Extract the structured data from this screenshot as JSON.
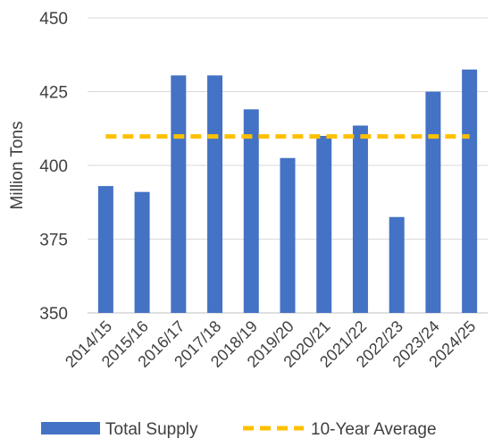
{
  "chart_data": {
    "type": "bar",
    "ylabel": "Million Tons",
    "xlabel": "",
    "ylim": [
      350,
      450
    ],
    "yticks": [
      350,
      375,
      400,
      425,
      450
    ],
    "grid": true,
    "legend_position": "bottom",
    "categories": [
      "2014/15",
      "2015/16",
      "2016/17",
      "2017/18",
      "2018/19",
      "2019/20",
      "2020/21",
      "2021/22",
      "2022/23",
      "2023/24",
      "2024/25"
    ],
    "series": [
      {
        "name": "Total Supply",
        "type": "bar",
        "color": "#4472C4",
        "values": [
          393,
          391,
          430.5,
          430.5,
          419,
          402.5,
          410,
          413.5,
          382.5,
          425,
          432.5
        ]
      },
      {
        "name": "10-Year Average",
        "type": "line",
        "style": "dashed",
        "color": "#FFC000",
        "values": [
          409.8,
          409.8,
          409.8,
          409.8,
          409.8,
          409.8,
          409.8,
          409.8,
          409.8,
          409.8,
          409.8
        ]
      }
    ]
  }
}
